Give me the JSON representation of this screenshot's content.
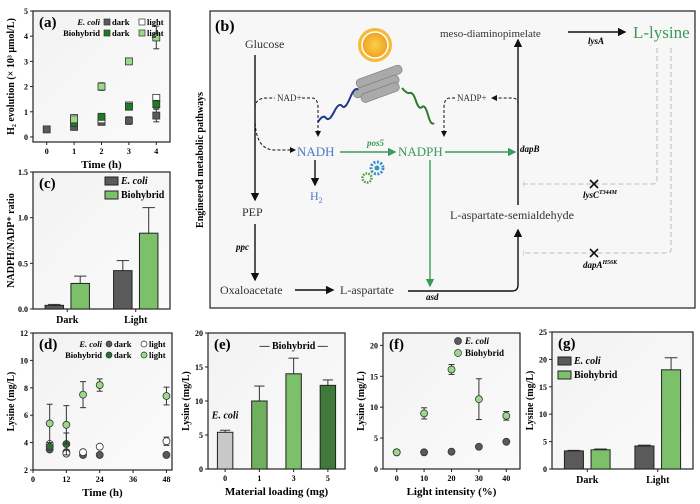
{
  "colors": {
    "ecoli": "#5a5a5a",
    "bio_dark": "#1e7a1e",
    "bio_light": "#9ad98a",
    "green_text": "#3a9a5a",
    "blue_text": "#4a7acc",
    "frame": "#222222"
  },
  "diagram": {
    "panel_label": "(b)",
    "side_label": "Engineered metabolic pathways",
    "glucose": "Glucose",
    "nad": "NAD+",
    "nadh": "NADH",
    "nadph": "NADPH",
    "pos5": "pos5",
    "h2": "H",
    "h2_sub": "2",
    "pep": "PEP",
    "ppc": "ppc",
    "oxaloacetate": "Oxaloacetate",
    "l_aspartate": "L-aspartate",
    "asd": "asd",
    "semialdehyde": "L-aspartate-semialdehyde",
    "dapB": "dapB",
    "meso": "meso-diaminopimelate",
    "lysA": "lysA",
    "lysine": "L-lysine",
    "nadp": "NADP+",
    "lysC": "lysC",
    "lysC_sup": "T344M",
    "dapA": "dapA",
    "dapA_sup": "H56K",
    "icons": [
      "sun-icon",
      "nanotube-material-icon",
      "gears-icon",
      "inhibition-cross-icon"
    ]
  },
  "chart_data": [
    {
      "id": "a",
      "panel_label": "(a)",
      "type": "scatter",
      "xlabel": "Time (h)",
      "ylabel": "H₂ evolution (× 10³ μmol/L)",
      "xlim": [
        -0.5,
        4.5
      ],
      "ylim": [
        -0.2,
        5
      ],
      "xticks": [
        0,
        1,
        2,
        3,
        4
      ],
      "yticks": [
        0,
        1,
        2,
        3,
        4,
        5
      ],
      "legend": {
        "rows": [
          {
            "group": "E. coli",
            "items": [
              "dark",
              "light"
            ]
          },
          {
            "group": "Biohybrid",
            "items": [
              "dark",
              "light"
            ]
          }
        ],
        "placement": "top-right"
      },
      "series": [
        {
          "name": "E. coli dark",
          "marker": "square",
          "fill": "#5a5a5a",
          "x": [
            0,
            1,
            2,
            3,
            4
          ],
          "y": [
            0.3,
            0.4,
            0.6,
            0.65,
            0.85
          ],
          "err": [
            0.05,
            0.08,
            0.1,
            0.15,
            0.25
          ]
        },
        {
          "name": "E. coli light",
          "marker": "square",
          "fill": "#ffffff",
          "x": [
            1,
            2,
            3,
            4
          ],
          "y": [
            0.75,
            0.7,
            1.25,
            1.55
          ],
          "err": [
            0.05,
            0.05,
            0.05,
            0.05
          ]
        },
        {
          "name": "Biohybrid dark",
          "marker": "square",
          "fill": "#1e7a1e",
          "x": [
            1,
            2,
            3,
            4
          ],
          "y": [
            0.55,
            0.8,
            1.2,
            1.3
          ],
          "err": [
            0.1,
            0.1,
            0.1,
            0.15
          ]
        },
        {
          "name": "Biohybrid light",
          "marker": "square",
          "fill": "#9ad98a",
          "x": [
            1,
            2,
            3,
            4
          ],
          "y": [
            0.7,
            2.0,
            3.0,
            3.95
          ],
          "err": [
            0.08,
            0.15,
            0.05,
            0.45
          ]
        }
      ]
    },
    {
      "id": "c",
      "panel_label": "(c)",
      "type": "bar",
      "xlabel": "",
      "ylabel": "NADPH/NADP⁺ ratio",
      "categories": [
        "Dark",
        "Light"
      ],
      "ylim": [
        0,
        1.5
      ],
      "yticks": [
        "0.0",
        "0.5",
        "1.0",
        "1.5"
      ],
      "legend": {
        "placement": "top-right"
      },
      "series": [
        {
          "name": "E. coli",
          "fill": "#5a5a5a",
          "values": [
            0.04,
            0.42
          ],
          "err": [
            0.01,
            0.11
          ]
        },
        {
          "name": "Biohybrid",
          "fill": "#7cc06a",
          "values": [
            0.28,
            0.83
          ],
          "err": [
            0.08,
            0.28
          ]
        }
      ]
    },
    {
      "id": "d",
      "panel_label": "(d)",
      "type": "scatter",
      "xlabel": "Time (h)",
      "ylabel": "Lysine (mg/L)",
      "xlim": [
        0,
        50
      ],
      "ylim": [
        2,
        12
      ],
      "xticks": [
        0,
        12,
        24,
        36,
        48
      ],
      "yticks": [
        2,
        4,
        6,
        8,
        10,
        12
      ],
      "legend": {
        "rows": [
          {
            "group": "E. coli",
            "items": [
              "dark",
              "light"
            ]
          },
          {
            "group": "Biohybrid",
            "items": [
              "dark",
              "light"
            ]
          }
        ],
        "placement": "top-right"
      },
      "series": [
        {
          "name": "E. coli dark",
          "marker": "circle",
          "fill": "#5a5a5a",
          "x": [
            6,
            12,
            18,
            24,
            48
          ],
          "y": [
            3.5,
            3.3,
            3.1,
            3.1,
            3.1
          ],
          "err": [
            0.1,
            0.1,
            0.1,
            0.1,
            0.1
          ]
        },
        {
          "name": "E. coli light",
          "marker": "circle",
          "fill": "#ffffff",
          "x": [
            6,
            12,
            18,
            24,
            48
          ],
          "y": [
            3.9,
            3.2,
            3.3,
            3.7,
            4.1
          ],
          "err": [
            0.1,
            0.1,
            0.1,
            0.15,
            0.3
          ]
        },
        {
          "name": "Biohybrid dark",
          "marker": "circle",
          "fill": "#2e6e2e",
          "x": [
            6,
            12
          ],
          "y": [
            3.7,
            3.9
          ],
          "err": [
            0.1,
            0.8
          ]
        },
        {
          "name": "Biohybrid light",
          "marker": "circle",
          "fill": "#9ad98a",
          "x": [
            6,
            12,
            18,
            24,
            48
          ],
          "y": [
            5.4,
            5.3,
            7.5,
            8.2,
            7.4
          ],
          "err": [
            1.4,
            1.4,
            0.95,
            0.45,
            0.65
          ]
        }
      ]
    },
    {
      "id": "e",
      "panel_label": "(e)",
      "type": "bar",
      "xlabel": "Material loading (mg)",
      "ylabel": "Lysine (mg/L)",
      "categories": [
        "0",
        "1",
        "3",
        "5"
      ],
      "ylim": [
        0,
        20
      ],
      "yticks": [
        0,
        5,
        10,
        15,
        20
      ],
      "annotations": [
        "E. coli",
        "— Biohybrid —"
      ],
      "values": [
        5.4,
        10.0,
        14.0,
        12.3
      ],
      "err": [
        0.3,
        2.2,
        2.3,
        0.8
      ],
      "fills": [
        "#c8c8c8",
        "#6fb05e",
        "#7cc06a",
        "#3f7a3a"
      ]
    },
    {
      "id": "f",
      "panel_label": "(f)",
      "type": "scatter",
      "xlabel": "Light intensity (%)",
      "ylabel": "Lysine (mg/L)",
      "xlim": [
        -5,
        45
      ],
      "ylim": [
        0,
        22
      ],
      "xticks": [
        0,
        10,
        20,
        30,
        40
      ],
      "yticks": [
        0,
        5,
        10,
        15,
        20
      ],
      "legend": {
        "placement": "top-right"
      },
      "series": [
        {
          "name": "E. coli",
          "marker": "circle",
          "fill": "#5a5a5a",
          "x": [
            0,
            10,
            20,
            30,
            40
          ],
          "y": [
            2.7,
            2.7,
            2.8,
            3.6,
            4.4
          ],
          "err": [
            0.1,
            0.1,
            0.1,
            0.2,
            0.2
          ]
        },
        {
          "name": "Biohybrid",
          "marker": "circle",
          "fill": "#9ad98a",
          "x": [
            0,
            10,
            20,
            30,
            40
          ],
          "y": [
            2.7,
            9.0,
            16.1,
            11.3,
            8.6
          ],
          "err": [
            0.1,
            0.9,
            0.8,
            3.3,
            0.7
          ]
        }
      ]
    },
    {
      "id": "g",
      "panel_label": "(g)",
      "type": "bar",
      "xlabel": "",
      "ylabel": "Lysine (mg/L)",
      "categories": [
        "Dark",
        "Light"
      ],
      "ylim": [
        0,
        25
      ],
      "yticks": [
        0,
        5,
        10,
        15,
        20,
        25
      ],
      "legend": {
        "placement": "top-left"
      },
      "series": [
        {
          "name": "E. coli",
          "fill": "#5a5a5a",
          "values": [
            3.3,
            4.2
          ],
          "err": [
            0.1,
            0.15
          ]
        },
        {
          "name": "Biohybrid",
          "fill": "#7cc06a",
          "values": [
            3.5,
            18.1
          ],
          "err": [
            0.15,
            2.2
          ]
        }
      ]
    }
  ]
}
